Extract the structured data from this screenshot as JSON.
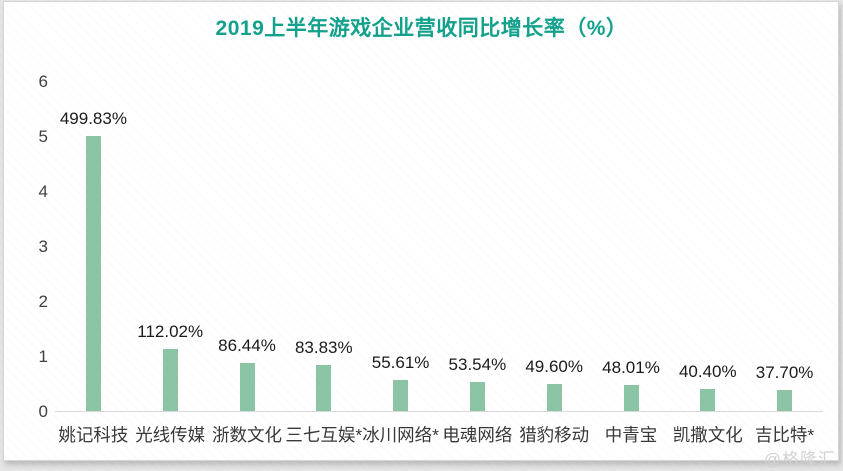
{
  "title": "2019上半年游戏企业营收同比增长率（%）",
  "watermark": "@格隆汇",
  "colors": {
    "title": "#12a18c",
    "bar": "#8cc5a5",
    "axis_line": "#d9d9d9",
    "value_label": "#1a1a1a",
    "category_label": "#383838",
    "panel_bg": "#ffffff"
  },
  "chart_data": {
    "type": "bar",
    "title": "2019上半年游戏企业营收同比增长率（%）",
    "categories": [
      "姚记科技",
      "光线传媒",
      "浙数文化",
      "三七互娱*",
      "冰川网络*",
      "电魂网络",
      "猎豹移动",
      "中青宝",
      "凯撒文化",
      "吉比特*"
    ],
    "values": [
      499.83,
      112.02,
      86.44,
      83.83,
      55.61,
      53.54,
      49.6,
      48.01,
      40.4,
      37.7
    ],
    "value_labels": [
      "499.83%",
      "112.02%",
      "86.44%",
      "83.83%",
      "55.61%",
      "53.54%",
      "49.60%",
      "48.01%",
      "40.40%",
      "37.70%"
    ],
    "xlabel": "",
    "ylabel": "",
    "yticks": [
      0,
      1,
      2,
      3,
      4,
      5,
      6
    ],
    "ylim": [
      0,
      6
    ],
    "unit_note": "y axis in ratio units; bar height = percent / 100",
    "grid": false,
    "legend": false
  }
}
